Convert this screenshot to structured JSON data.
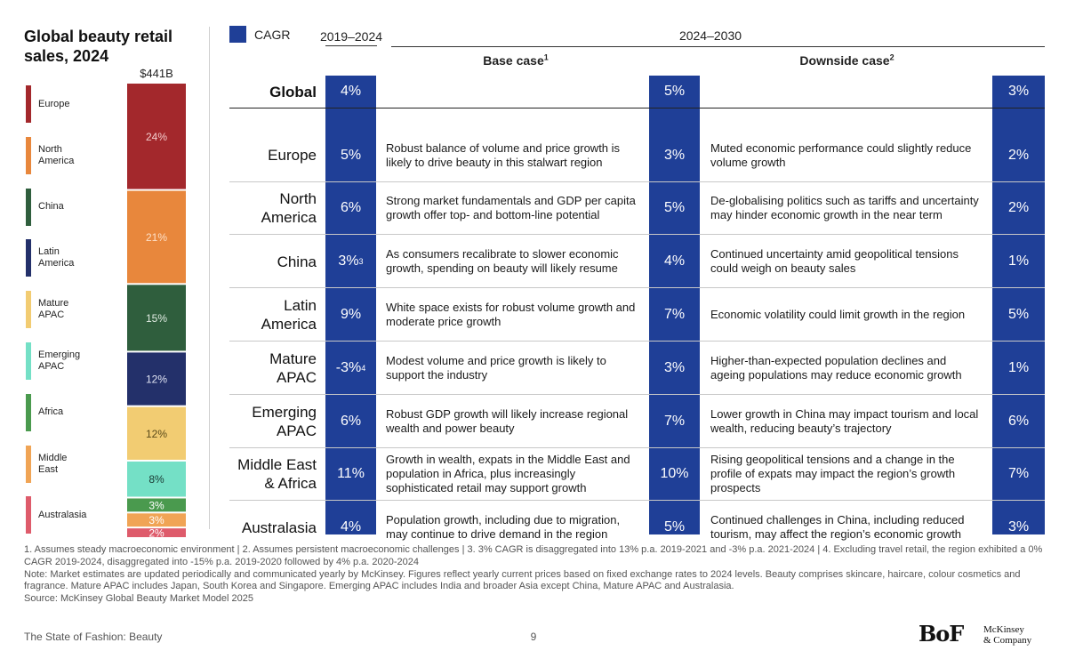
{
  "left_title": "Global beauty retail sales, 2024",
  "chart_data": {
    "type": "bar",
    "stacked": true,
    "title": "Global beauty retail sales, 2024",
    "total_label": "$441B",
    "categories": [
      "Europe",
      "North America",
      "China",
      "Latin America",
      "Mature APAC",
      "Emerging APAC",
      "Africa",
      "Middle East",
      "Australasia"
    ],
    "legend_labels": [
      "Europe",
      "North\nAmerica",
      "China",
      "Latin\nAmerica",
      "Mature\nAPAC",
      "Emerging\nAPAC",
      "Africa",
      "Middle\nEast",
      "Australasia"
    ],
    "values": [
      24,
      21,
      15,
      12,
      12,
      8,
      3,
      3,
      2
    ],
    "value_labels": [
      "24%",
      "21%",
      "15%",
      "12%",
      "12%",
      "8%",
      "3%",
      "3%",
      "2%"
    ],
    "unit": "%",
    "colors": [
      "#a3282c",
      "#e8873c",
      "#2f5e3d",
      "#23306a",
      "#f2cc72",
      "#74e0c6",
      "#4a9a4e",
      "#f0a455",
      "#de5b6b"
    ],
    "label_colors": [
      "#f3cccc",
      "#fde0c8",
      "#e0ebe2",
      "#e0e4f3",
      "#5a4a1a",
      "#1a3a33",
      "#ffffff",
      "#ffffff",
      "#ffffff"
    ]
  },
  "legend": {
    "cagr_label": "CAGR"
  },
  "headers": {
    "period1": "2019–2024",
    "period2": "2024–2030",
    "base_case": "Base case",
    "base_case_sup": "1",
    "downside_case": "Downside case",
    "downside_case_sup": "2"
  },
  "table": {
    "rows": [
      {
        "region": "Global",
        "cagr_2019_2024": "4%",
        "cagr_2019_2024_sup": "",
        "base_cagr": "5%",
        "base_text": "",
        "downside_cagr": "3%",
        "downside_text": ""
      },
      {
        "region": "Europe",
        "cagr_2019_2024": "5%",
        "cagr_2019_2024_sup": "",
        "base_cagr": "3%",
        "base_text": "Robust balance of volume and price growth is likely to drive beauty in this stalwart region",
        "downside_cagr": "2%",
        "downside_text": "Muted economic performance could slightly reduce volume growth"
      },
      {
        "region": "North\nAmerica",
        "cagr_2019_2024": "6%",
        "cagr_2019_2024_sup": "",
        "base_cagr": "5%",
        "base_text": "Strong market fundamentals and GDP per capita growth offer top- and bottom-line potential",
        "downside_cagr": "2%",
        "downside_text": "De-globalising politics such as tariffs and uncertainty may hinder economic growth in the near term"
      },
      {
        "region": "China",
        "cagr_2019_2024": "3%",
        "cagr_2019_2024_sup": "3",
        "base_cagr": "4%",
        "base_text": "As consumers recalibrate to slower economic growth, spending on beauty will likely resume",
        "downside_cagr": "1%",
        "downside_text": "Continued uncertainty amid geopolitical tensions could weigh on beauty sales"
      },
      {
        "region": "Latin\nAmerica",
        "cagr_2019_2024": "9%",
        "cagr_2019_2024_sup": "",
        "base_cagr": "7%",
        "base_text": "White space exists for robust volume growth and moderate price growth",
        "downside_cagr": "5%",
        "downside_text": "Economic volatility could limit growth in the region"
      },
      {
        "region": "Mature\nAPAC",
        "cagr_2019_2024": "-3%",
        "cagr_2019_2024_sup": "4",
        "base_cagr": "3%",
        "base_text": "Modest volume and price growth is likely to support the industry",
        "downside_cagr": "1%",
        "downside_text": "Higher-than-expected population declines and ageing populations may reduce economic growth"
      },
      {
        "region": "Emerging\nAPAC",
        "cagr_2019_2024": "6%",
        "cagr_2019_2024_sup": "",
        "base_cagr": "7%",
        "base_text": "Robust GDP growth will likely increase regional wealth and power beauty",
        "downside_cagr": "6%",
        "downside_text": "Lower growth in China may impact tourism and local wealth, reducing beauty’s trajectory"
      },
      {
        "region": "Middle East\n& Africa",
        "cagr_2019_2024": "11%",
        "cagr_2019_2024_sup": "",
        "base_cagr": "10%",
        "base_text": "Growth in wealth, expats in the Middle East and population in Africa, plus increasingly sophisticated retail may support growth",
        "downside_cagr": "7%",
        "downside_text": "Rising geopolitical tensions and a change in the profile of expats may impact the region’s growth prospects"
      },
      {
        "region": "Australasia",
        "cagr_2019_2024": "4%",
        "cagr_2019_2024_sup": "",
        "base_cagr": "5%",
        "base_text": "Population growth, including due to migration, may continue to drive demand in the region",
        "downside_cagr": "3%",
        "downside_text": "Continued challenges in China, including reduced tourism, may affect the region’s economic growth"
      }
    ]
  },
  "footnotes": {
    "line1": "1. Assumes steady macroeconomic environment | 2. Assumes persistent macroeconomic challenges | 3. 3% CAGR is disaggregated into 13% p.a. 2019-2021 and -3% p.a. 2021-2024 | 4. Excluding travel retail, the region exhibited a 0% CAGR 2019-2024, disaggregated into -15% p.a. 2019-2020 followed by 4% p.a. 2020-2024",
    "line2": "Note: Market estimates are updated periodically and communicated yearly by McKinsey. Figures reflect yearly current prices based on fixed exchange rates to 2024 levels. Beauty comprises skincare, haircare, colour cosmetics and fragrance. Mature APAC includes Japan, South Korea and Singapore. Emerging APAC includes India and broader Asia except China, Mature APAC and Australasia.",
    "line3": "Source: McKinsey Global Beauty Market Model 2025"
  },
  "footer": {
    "publication": "The State of Fashion: Beauty",
    "page_number": "9",
    "logo_bof": "BoF",
    "logo_mckinsey": "McKinsey\n& Company"
  },
  "accent_color": "#1f3f97"
}
